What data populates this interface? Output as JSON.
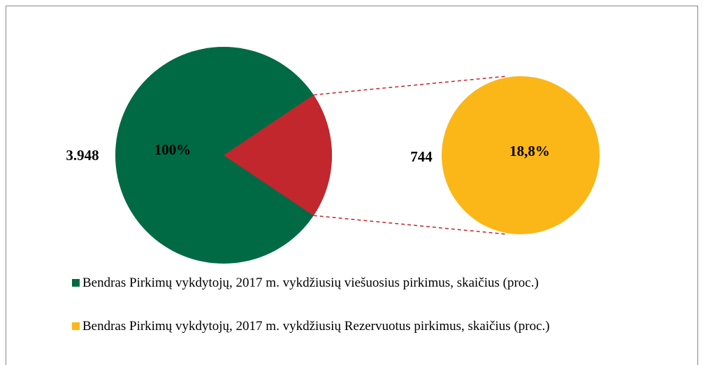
{
  "chart_data": {
    "type": "pie-of-pie",
    "wedge_color": "#c1272d",
    "series": [
      {
        "name": "Bendras Pirkimų vykdytojų, 2017 m. vykdžiusių viešuosius pirkimus, skaičius (proc.)",
        "color": "#006a45",
        "value": 3948,
        "value_label": "3.948",
        "percent": 100,
        "percent_label": "100%"
      },
      {
        "name": "Bendras Pirkimų vykdytojų, 2017 m. vykdžiusių Rezervuotus pirkimus, skaičius (proc.)",
        "color": "#fbb717",
        "value": 744,
        "value_label": "744",
        "percent": 18.8,
        "percent_label": "18,8%"
      }
    ]
  }
}
